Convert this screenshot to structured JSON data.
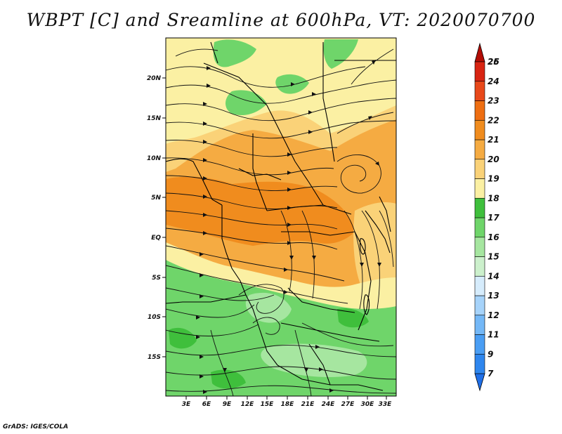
{
  "title": "WBPT [C] and Sreamline at 600hPa, VT: 2020070700",
  "footer": "GrADS: IGES/COLA",
  "map": {
    "lon_labels": [
      "3E",
      "6E",
      "9E",
      "12E",
      "15E",
      "18E",
      "21E",
      "24E",
      "27E",
      "30E",
      "33E"
    ],
    "lat_labels": [
      "20N",
      "15N",
      "10N",
      "5N",
      "EQ",
      "5S",
      "10S",
      "15S"
    ]
  },
  "colorbar": {
    "levels": [
      "7",
      "9",
      "11",
      "12",
      "13",
      "14",
      "15",
      "16",
      "17",
      "18",
      "19",
      "20",
      "21",
      "22",
      "23",
      "24",
      "25",
      "26"
    ],
    "colors": [
      "#1f6fe8",
      "#2e86ee",
      "#4a9ef4",
      "#74b8f7",
      "#a6d3fa",
      "#d6ecfc",
      "#ccf0cc",
      "#a6e6a0",
      "#6fd56a",
      "#3fbf3c",
      "#fbf0a3",
      "#fad278",
      "#f5ab42",
      "#f08c1e",
      "#ee6e12",
      "#e8481a",
      "#d82412",
      "#b30d05"
    ]
  },
  "colors": {
    "green_light": "#a6e6a0",
    "green": "#6fd56a",
    "green_dark": "#3fbf3c",
    "yellow": "#fbf0a3",
    "light_orange": "#fad278",
    "orange": "#f5ab42",
    "dark_orange": "#f08c1e"
  }
}
